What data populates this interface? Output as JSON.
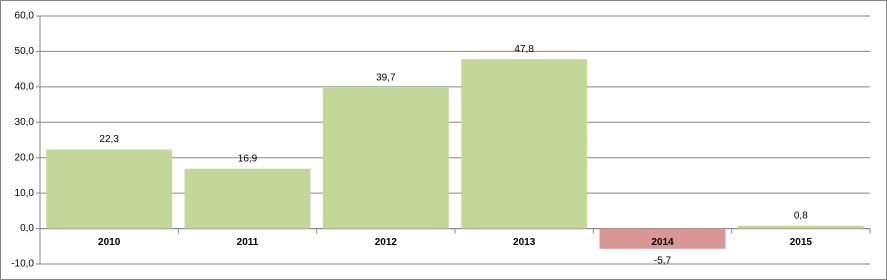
{
  "chart_data": {
    "type": "bar",
    "categories": [
      "2010",
      "2011",
      "2012",
      "2013",
      "2014",
      "2015"
    ],
    "values": [
      22.3,
      16.9,
      39.7,
      47.8,
      -5.7,
      0.8
    ],
    "value_labels": [
      "22,3",
      "16,9",
      "39,7",
      "47,8",
      "-5,7",
      "0,8"
    ],
    "color": "#c4d79b",
    "negative_color": "#da9694",
    "ylim": [
      -10,
      60
    ],
    "yticks": [
      {
        "value": -10,
        "label": "-10,0"
      },
      {
        "value": 0,
        "label": "0,0"
      },
      {
        "value": 10,
        "label": "10,0"
      },
      {
        "value": 20,
        "label": "20,0"
      },
      {
        "value": 30,
        "label": "30,0"
      },
      {
        "value": 40,
        "label": "40,0"
      },
      {
        "value": 50,
        "label": "50,0"
      },
      {
        "value": 60,
        "label": "60,0"
      }
    ],
    "grid": true
  }
}
